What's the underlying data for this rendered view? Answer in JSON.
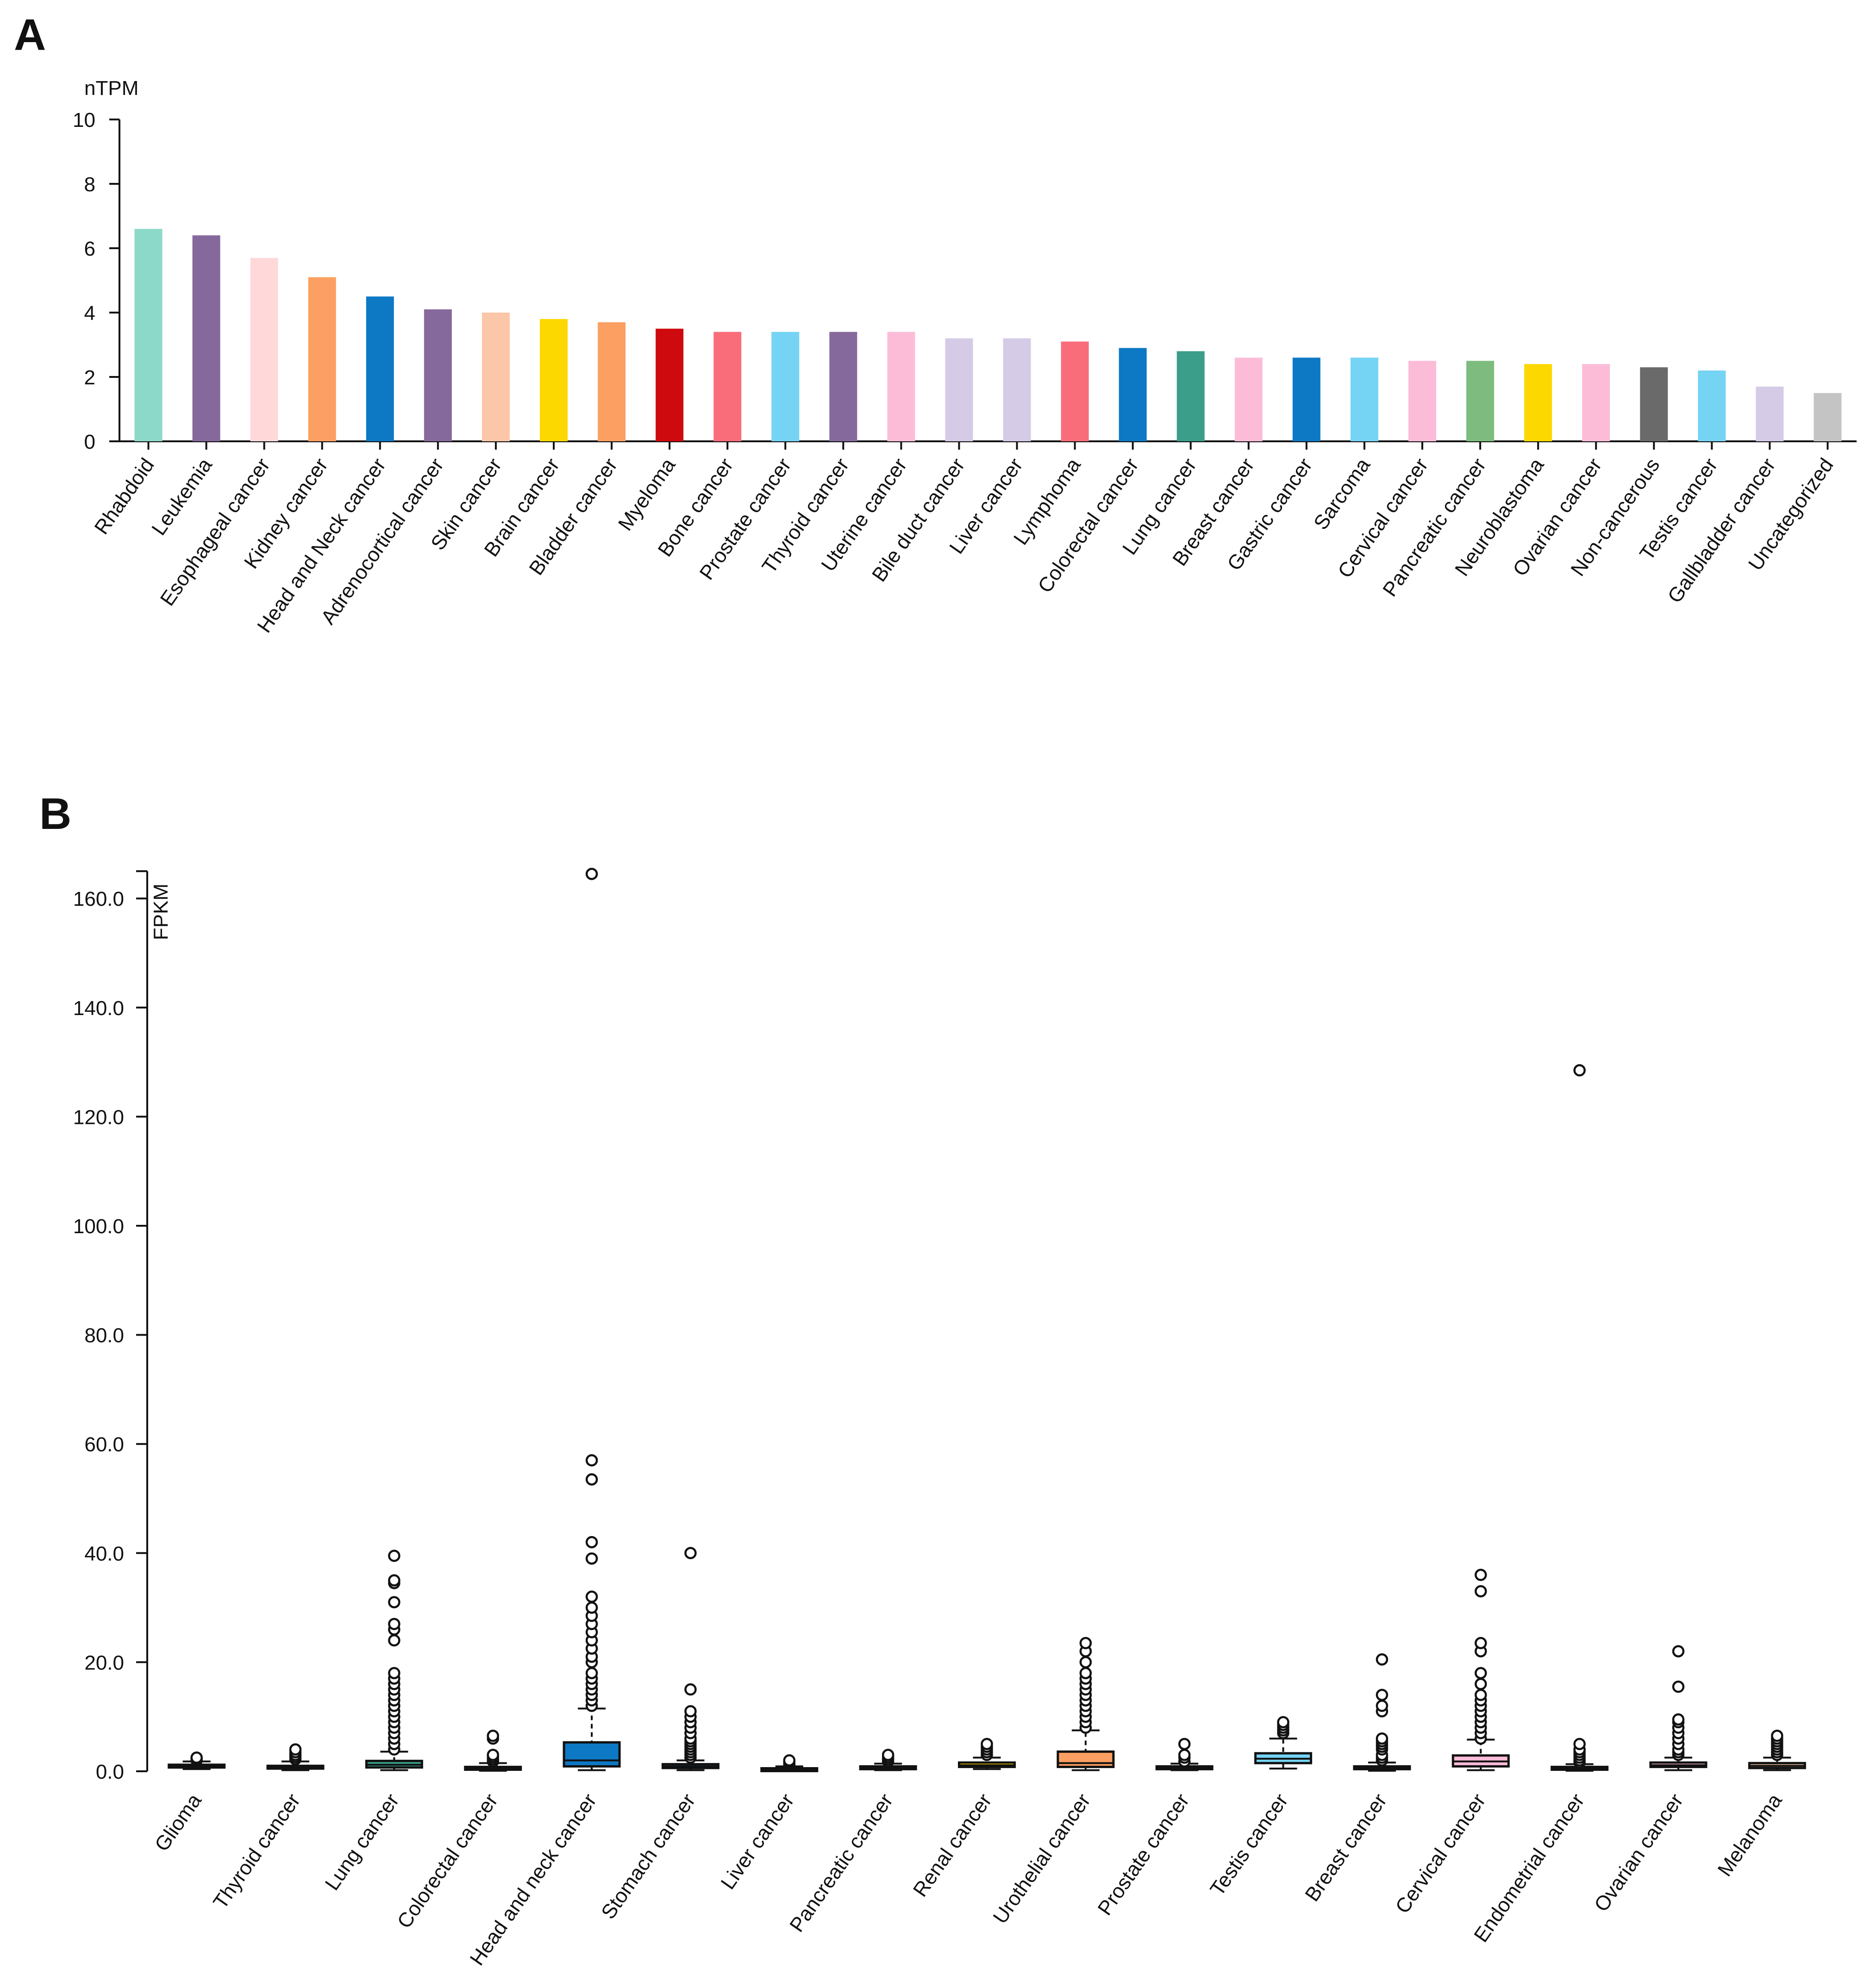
{
  "panels": {
    "a_label": "A",
    "b_label": "B"
  },
  "chart_data": [
    {
      "type": "bar",
      "title": "",
      "xlabel": "",
      "ylabel": "nTPM",
      "ylim": [
        0,
        10
      ],
      "yticks": [
        0,
        2,
        4,
        6,
        8,
        10
      ],
      "categories": [
        "Rhabdoid",
        "Leukemia",
        "Esophageal cancer",
        "Kidney cancer",
        "Head and Neck cancer",
        "Adrenocortical cancer",
        "Skin cancer",
        "Brain cancer",
        "Bladder cancer",
        "Myeloma",
        "Bone cancer",
        "Prostate cancer",
        "Thyroid cancer",
        "Uterine cancer",
        "Bile duct cancer",
        "Liver cancer",
        "Lymphoma",
        "Colorectal cancer",
        "Lung cancer",
        "Breast cancer",
        "Gastric cancer",
        "Sarcoma",
        "Cervical cancer",
        "Pancreatic cancer",
        "Neuroblastoma",
        "Ovarian cancer",
        "Non-cancerous",
        "Testis cancer",
        "Gallbladder cancer",
        "Uncategorized"
      ],
      "values": [
        6.6,
        6.4,
        5.7,
        5.1,
        4.5,
        4.1,
        4.0,
        3.8,
        3.7,
        3.5,
        3.4,
        3.4,
        3.4,
        3.4,
        3.2,
        3.2,
        3.1,
        2.9,
        2.8,
        2.6,
        2.6,
        2.6,
        2.5,
        2.5,
        2.4,
        2.4,
        2.3,
        2.2,
        1.7,
        1.5
      ],
      "colors": [
        "#8dd9c9",
        "#86699c",
        "#ffd9d9",
        "#fba062",
        "#0d78c4",
        "#86699c",
        "#fcc6a8",
        "#fdd800",
        "#fba062",
        "#cf0a0e",
        "#f96d7a",
        "#75d3f4",
        "#86699c",
        "#fcbcd8",
        "#d5cbe6",
        "#d5cbe6",
        "#f96d7a",
        "#0d78c4",
        "#3a9e8a",
        "#fcbcd8",
        "#0d78c4",
        "#75d3f4",
        "#fcbcd8",
        "#7dbc7e",
        "#fdd800",
        "#fcbcd8",
        "#6a6a6a",
        "#75d3f4",
        "#d5cbe6",
        "#c4c4c4"
      ]
    },
    {
      "type": "box",
      "title": "",
      "xlabel": "",
      "ylabel": "FPKM",
      "ylim": [
        0,
        165
      ],
      "yticks": [
        0,
        20,
        40,
        60,
        80,
        100,
        120,
        140,
        160
      ],
      "ytick_labels": [
        "0.0",
        "20.0",
        "40.0",
        "60.0",
        "80.0",
        "100.0",
        "120.0",
        "140.0",
        "160.0"
      ],
      "categories": [
        "Glioma",
        "Thyroid cancer",
        "Lung cancer",
        "Colorectal cancer",
        "Head and neck cancer",
        "Stomach cancer",
        "Liver cancer",
        "Pancreatic cancer",
        "Renal cancer",
        "Urothelial cancer",
        "Prostate cancer",
        "Testis cancer",
        "Breast cancer",
        "Cervical cancer",
        "Endometrial cancer",
        "Ovarian cancer",
        "Melanoma"
      ],
      "boxes": [
        {
          "lowerWhisker": 0.4,
          "q1": 0.7,
          "median": 0.9,
          "q3": 1.2,
          "upperWhisker": 1.8,
          "color": "#86699c",
          "outliers": [
            2.0,
            2.2,
            2.5
          ]
        },
        {
          "lowerWhisker": 0.2,
          "q1": 0.5,
          "median": 0.7,
          "q3": 1.0,
          "upperWhisker": 1.8,
          "color": "#86699c",
          "outliers": [
            2.2,
            2.6,
            3.0,
            3.5,
            4.0
          ]
        },
        {
          "lowerWhisker": 0.2,
          "q1": 0.7,
          "median": 1.2,
          "q3": 1.9,
          "upperWhisker": 3.6,
          "color": "#3a9e8a",
          "outliers": [
            4.0,
            5.0,
            6.0,
            7.0,
            8.0,
            9.0,
            10.0,
            11.0,
            12.0,
            13.0,
            14.0,
            15.0,
            16.0,
            17.0,
            18.0,
            24.0,
            26.0,
            27.0,
            31.0,
            34.5,
            35.0,
            39.5
          ]
        },
        {
          "lowerWhisker": 0.1,
          "q1": 0.3,
          "median": 0.5,
          "q3": 0.8,
          "upperWhisker": 1.5,
          "color": "#0d78c4",
          "outliers": [
            1.8,
            2.2,
            2.6,
            3.0,
            6.0,
            6.5
          ]
        },
        {
          "lowerWhisker": 0.2,
          "q1": 0.9,
          "median": 2.0,
          "q3": 5.3,
          "upperWhisker": 11.5,
          "color": "#0d78c4",
          "outliers": [
            12.0,
            13.0,
            14.0,
            15.0,
            16.0,
            17.0,
            18.0,
            20.0,
            21.0,
            22.5,
            24.0,
            25.5,
            27.0,
            28.5,
            30.0,
            32.0,
            39.0,
            42.0,
            53.5,
            57.0,
            164.5
          ]
        },
        {
          "lowerWhisker": 0.2,
          "q1": 0.6,
          "median": 0.9,
          "q3": 1.3,
          "upperWhisker": 2.0,
          "color": "#0d78c4",
          "outliers": [
            2.5,
            3.0,
            3.5,
            4.0,
            4.5,
            5.0,
            5.5,
            6.0,
            7.0,
            8.0,
            9.0,
            10.0,
            11.0,
            15.0,
            40.0
          ]
        },
        {
          "lowerWhisker": 0.1,
          "q1": 0.25,
          "median": 0.4,
          "q3": 0.55,
          "upperWhisker": 0.9,
          "color": "#d5cbe6",
          "outliers": [
            1.2,
            1.5,
            1.8,
            2.0
          ]
        },
        {
          "lowerWhisker": 0.2,
          "q1": 0.5,
          "median": 0.7,
          "q3": 0.9,
          "upperWhisker": 1.4,
          "color": "#7dbc7e",
          "outliers": [
            1.8,
            2.2,
            2.6,
            3.0
          ]
        },
        {
          "lowerWhisker": 0.4,
          "q1": 0.8,
          "median": 1.1,
          "q3": 1.6,
          "upperWhisker": 2.5,
          "color": "#fdd800",
          "outliers": [
            3.0,
            3.5,
            4.0,
            4.5,
            5.0
          ]
        },
        {
          "lowerWhisker": 0.2,
          "q1": 0.8,
          "median": 1.5,
          "q3": 3.6,
          "upperWhisker": 7.5,
          "color": "#fba062",
          "outliers": [
            8.0,
            9.0,
            10.0,
            11.0,
            12.0,
            13.0,
            14.0,
            15.0,
            16.0,
            17.0,
            18.0,
            20.0,
            22.0,
            23.5
          ]
        },
        {
          "lowerWhisker": 0.2,
          "q1": 0.5,
          "median": 0.7,
          "q3": 0.9,
          "upperWhisker": 1.4,
          "color": "#f96d7a",
          "outliers": [
            1.8,
            2.5,
            3.0,
            5.0
          ]
        },
        {
          "lowerWhisker": 0.5,
          "q1": 1.5,
          "median": 2.3,
          "q3": 3.3,
          "upperWhisker": 6.0,
          "color": "#75d3f4",
          "outliers": [
            7.0,
            7.5,
            8.0,
            8.5,
            9.0
          ]
        },
        {
          "lowerWhisker": 0.1,
          "q1": 0.4,
          "median": 0.6,
          "q3": 0.9,
          "upperWhisker": 1.6,
          "color": "#fcbcd8",
          "outliers": [
            2.0,
            2.5,
            3.0,
            4.0,
            4.5,
            5.0,
            5.5,
            6.0,
            11.0,
            12.0,
            14.0,
            20.5
          ]
        },
        {
          "lowerWhisker": 0.2,
          "q1": 0.9,
          "median": 1.8,
          "q3": 2.9,
          "upperWhisker": 5.8,
          "color": "#fcbcd8",
          "outliers": [
            6.0,
            7.0,
            8.0,
            9.0,
            10.0,
            11.0,
            12.0,
            13.0,
            14.0,
            16.0,
            18.0,
            22.0,
            23.5,
            33.0,
            36.0
          ]
        },
        {
          "lowerWhisker": 0.1,
          "q1": 0.3,
          "median": 0.5,
          "q3": 0.8,
          "upperWhisker": 1.3,
          "color": "#fcbcd8",
          "outliers": [
            1.6,
            2.0,
            2.5,
            3.0,
            3.5,
            4.0,
            5.0,
            128.5
          ]
        },
        {
          "lowerWhisker": 0.2,
          "q1": 0.8,
          "median": 1.1,
          "q3": 1.6,
          "upperWhisker": 2.5,
          "color": "#fcbcd8",
          "outliers": [
            3.0,
            3.5,
            4.0,
            5.0,
            6.0,
            7.0,
            8.0,
            9.0,
            9.5,
            15.5,
            22.0
          ]
        },
        {
          "lowerWhisker": 0.2,
          "q1": 0.6,
          "median": 1.0,
          "q3": 1.5,
          "upperWhisker": 2.5,
          "color": "#fcc6a8",
          "outliers": [
            3.0,
            3.5,
            4.0,
            4.5,
            5.0,
            5.5,
            6.0,
            6.5
          ]
        }
      ]
    }
  ]
}
